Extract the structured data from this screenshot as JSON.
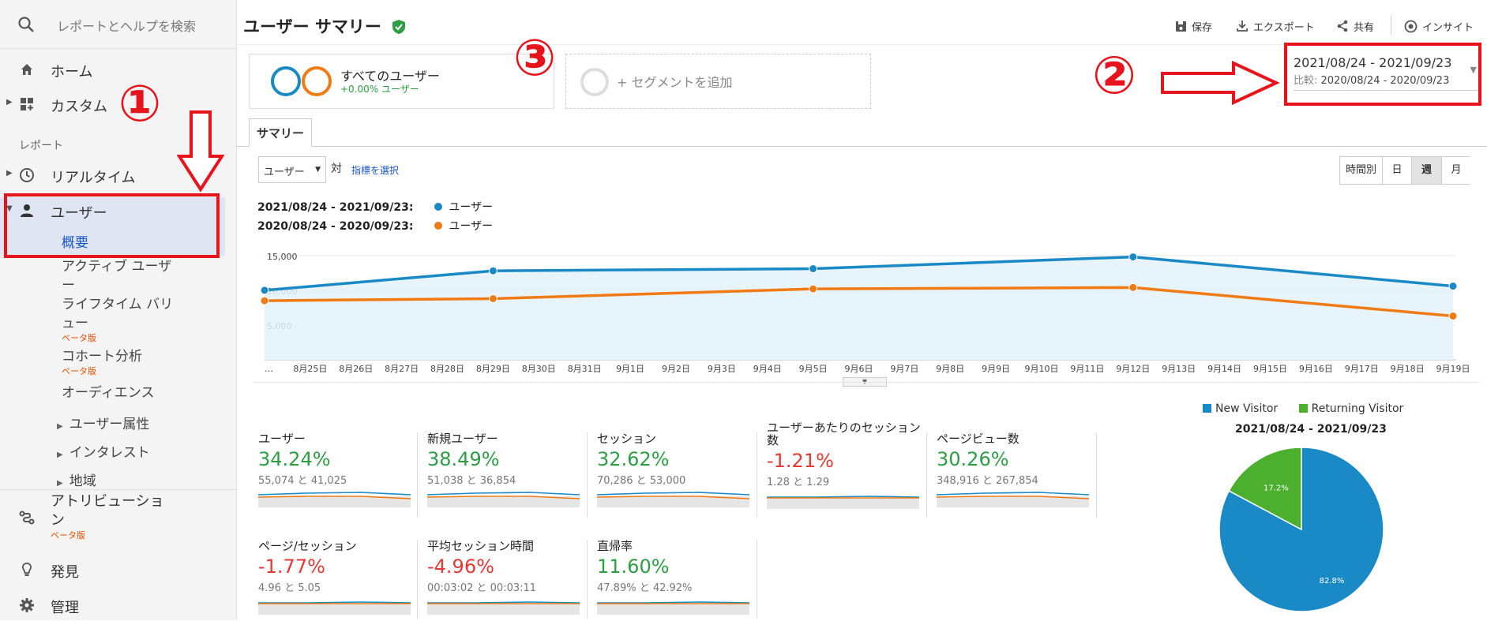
{
  "sidebar": {
    "search_placeholder": "レポートとヘルプを検索",
    "home": "ホーム",
    "custom": "カスタム",
    "reports_label": "レポート",
    "realtime": "リアルタイム",
    "users": "ユーザー",
    "overview": "概要",
    "active_users_1": "アクティブ ユーザ",
    "active_users_2": "ー",
    "lifetime_1": "ライフタイム バリ",
    "lifetime_2": "ュー",
    "beta": "ベータ版",
    "cohort": "コホート分析",
    "audience": "オーディエンス",
    "user_attributes": "ユーザー属性",
    "interests": "インタレスト",
    "region": "地域",
    "attribution_1": "アトリビューショ",
    "attribution_2": "ン",
    "discover": "発見",
    "admin": "管理"
  },
  "annotations": {
    "one": "①",
    "two": "②",
    "three": "③"
  },
  "header": {
    "title": "ユーザー サマリー",
    "save": "保存",
    "export": "エクスポート",
    "share": "共有",
    "insight": "インサイト"
  },
  "date_range": {
    "current": "2021/08/24 - 2021/09/23",
    "compare_label": "比較:",
    "compare": "2020/08/24 - 2020/09/23"
  },
  "segments": {
    "all_users": "すべてのユーザー",
    "all_users_pct": "+0.00% ユーザー",
    "add_segment": "+ セグメントを追加"
  },
  "tab": "サマリー",
  "controls": {
    "metric_select": "ユーザー",
    "vs": "対",
    "choose_metric": "指標を選択",
    "granularity": [
      "時間別",
      "日",
      "週",
      "月"
    ],
    "granularity_active": "週"
  },
  "chart_legend": {
    "current_range": "2021/08/24 - 2021/09/23:",
    "current_series": "ユーザー",
    "compare_range": "2020/08/24 - 2020/09/23:",
    "compare_series": "ユーザー"
  },
  "chart_data": {
    "type": "line",
    "x": [
      "…",
      "8月25日",
      "8月26日",
      "8月27日",
      "8月28日",
      "8月29日",
      "8月30日",
      "8月31日",
      "9月1日",
      "9月2日",
      "9月3日",
      "9月4日",
      "9月5日",
      "9月6日",
      "9月7日",
      "9月8日",
      "9月9日",
      "9月10日",
      "9月11日",
      "9月12日",
      "9月13日",
      "9月14日",
      "9月15日",
      "9月16日",
      "9月17日",
      "9月18日",
      "9月19日"
    ],
    "y_ticks": [
      "15,000",
      "10,000",
      "5,000"
    ],
    "ylim": [
      0,
      16000
    ],
    "series": [
      {
        "name": "ユーザー",
        "color": "#1a8ac6",
        "points": [
          [
            0,
            10000
          ],
          [
            5,
            12800
          ],
          [
            12,
            13100
          ],
          [
            19,
            14800
          ],
          [
            26,
            10600
          ]
        ]
      },
      {
        "name": "ユーザー",
        "color": "#f07b15",
        "points": [
          [
            0,
            8500
          ],
          [
            5,
            8800
          ],
          [
            12,
            10200
          ],
          [
            19,
            10400
          ],
          [
            26,
            6300
          ]
        ]
      }
    ]
  },
  "metrics": [
    {
      "name": "ユーザー",
      "pct": "34.24%",
      "cmp": "55,074 と 41,025",
      "trend": "up"
    },
    {
      "name": "新規ユーザー",
      "pct": "38.49%",
      "cmp": "51,038 と 36,854",
      "trend": "up"
    },
    {
      "name": "セッション",
      "pct": "32.62%",
      "cmp": "70,286 と 53,000",
      "trend": "up"
    },
    {
      "name": "ユーザーあたりのセッション数",
      "pct": "-1.21%",
      "cmp": "1.28 と 1.29",
      "trend": "down"
    },
    {
      "name": "ページビュー数",
      "pct": "30.26%",
      "cmp": "348,916 と 267,854",
      "trend": "up"
    },
    {
      "name": "ページ/セッション",
      "pct": "-1.77%",
      "cmp": "4.96 と 5.05",
      "trend": "down"
    },
    {
      "name": "平均セッション時間",
      "pct": "-4.96%",
      "cmp": "00:03:02 と 00:03:11",
      "trend": "down"
    },
    {
      "name": "直帰率",
      "pct": "11.60%",
      "cmp": "47.89% と 42.92%",
      "trend": "down"
    }
  ],
  "pie": {
    "title": "2021/08/24 - 2021/09/23",
    "legend": [
      {
        "label": "New Visitor",
        "color": "#1a8ac6"
      },
      {
        "label": "Returning Visitor",
        "color": "#4caf2e"
      }
    ],
    "values": [
      82.8,
      17.2
    ],
    "labels": [
      "82.8%",
      "17.2%"
    ]
  }
}
